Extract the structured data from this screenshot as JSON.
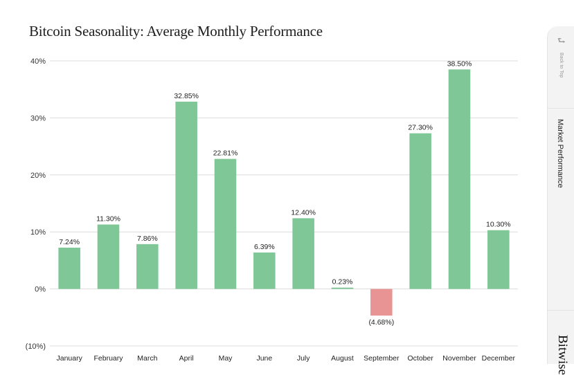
{
  "chart_data": {
    "type": "bar",
    "title": "Bitcoin Seasonality: Average Monthly Performance",
    "xlabel": "",
    "ylabel": "",
    "ylim": [
      -10,
      40
    ],
    "yticks": [
      {
        "value": 40,
        "label": "40%"
      },
      {
        "value": 30,
        "label": "30%"
      },
      {
        "value": 20,
        "label": "20%"
      },
      {
        "value": 10,
        "label": "10%"
      },
      {
        "value": 0,
        "label": "0%"
      },
      {
        "value": -10,
        "label": "(10%)"
      }
    ],
    "categories": [
      "January",
      "February",
      "March",
      "April",
      "May",
      "June",
      "July",
      "August",
      "September",
      "October",
      "November",
      "December"
    ],
    "values": [
      7.24,
      11.3,
      7.86,
      32.85,
      22.81,
      6.39,
      12.4,
      0.23,
      -4.68,
      27.3,
      38.5,
      10.3
    ],
    "data_labels": [
      "7.24%",
      "11.30%",
      "7.86%",
      "32.85%",
      "22.81%",
      "6.39%",
      "12.40%",
      "0.23%",
      "(4.68%)",
      "27.30%",
      "38.50%",
      "10.30%"
    ],
    "colors": {
      "positive": "#7fc796",
      "negative": "#e89494",
      "grid": "#dcdcdc",
      "text": "#222222"
    }
  },
  "side_panel": {
    "back_icon": "return-arrow-icon",
    "back_label": "Back to Top",
    "nav_label": "Market Performance",
    "brand": "Bitwise"
  }
}
